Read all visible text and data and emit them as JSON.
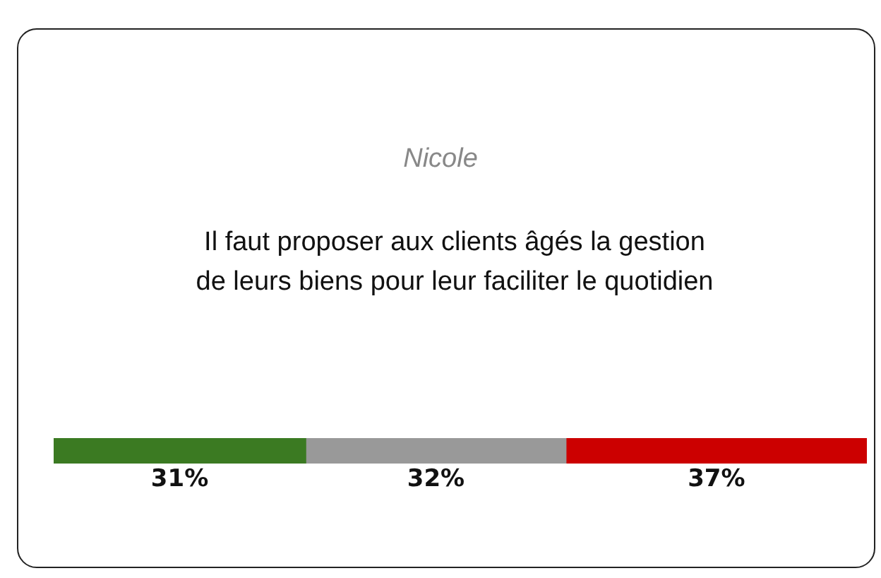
{
  "chart_data": {
    "type": "bar",
    "orientation": "horizontal",
    "stacked": true,
    "title": "Nicole",
    "subtitle": "Il faut proposer aux clients âgés la gestion de leurs biens pour leur faciliter le quotidien",
    "categories": [
      null
    ],
    "series": [
      {
        "color": "#3b7a22",
        "values": [
          31
        ],
        "value_labels": [
          "31%"
        ]
      },
      {
        "color": "#999999",
        "values": [
          32
        ],
        "value_labels": [
          "32%"
        ]
      },
      {
        "color": "#cc0000",
        "values": [
          37
        ],
        "value_labels": [
          "37%"
        ]
      }
    ],
    "tick_labels": false
  }
}
